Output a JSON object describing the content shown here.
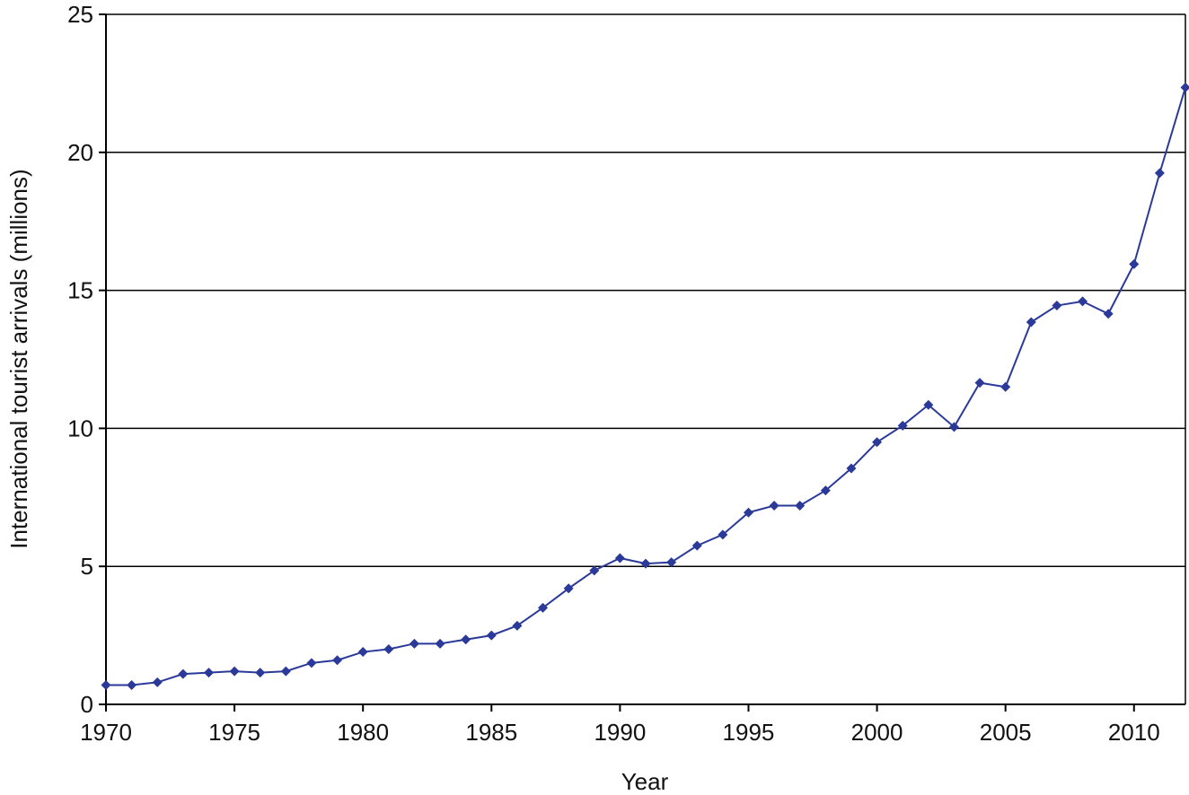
{
  "chart_data": {
    "type": "line",
    "title": "",
    "xlabel": "Year",
    "ylabel": "International tourist arrivals (millions)",
    "xlim": [
      1970,
      2012
    ],
    "ylim": [
      0,
      25
    ],
    "xticks": [
      1970,
      1975,
      1980,
      1985,
      1990,
      1995,
      2000,
      2005,
      2010
    ],
    "yticks": [
      0,
      5,
      10,
      15,
      20,
      25
    ],
    "grid": "horizontal",
    "legend": "none",
    "colors": {
      "line": "#2b3a99",
      "marker": "#2b3a99",
      "grid": "#000000",
      "axis": "#000000"
    },
    "x": [
      1970,
      1971,
      1972,
      1973,
      1974,
      1975,
      1976,
      1977,
      1978,
      1979,
      1980,
      1981,
      1982,
      1983,
      1984,
      1985,
      1986,
      1987,
      1988,
      1989,
      1990,
      1991,
      1992,
      1993,
      1994,
      1995,
      1996,
      1997,
      1998,
      1999,
      2000,
      2001,
      2002,
      2003,
      2004,
      2005,
      2006,
      2007,
      2008,
      2009,
      2010,
      2011,
      2012
    ],
    "series": [
      {
        "values": [
          0.7,
          0.7,
          0.8,
          1.1,
          1.15,
          1.2,
          1.15,
          1.2,
          1.5,
          1.6,
          1.9,
          2.0,
          2.2,
          2.2,
          2.35,
          2.5,
          2.85,
          3.5,
          4.2,
          4.85,
          5.3,
          5.1,
          5.15,
          5.75,
          6.15,
          6.95,
          7.2,
          7.2,
          7.75,
          8.55,
          9.5,
          10.1,
          10.85,
          10.05,
          11.65,
          11.5,
          13.85,
          14.45,
          14.6,
          14.15,
          15.95,
          19.25,
          22.35
        ]
      }
    ]
  }
}
